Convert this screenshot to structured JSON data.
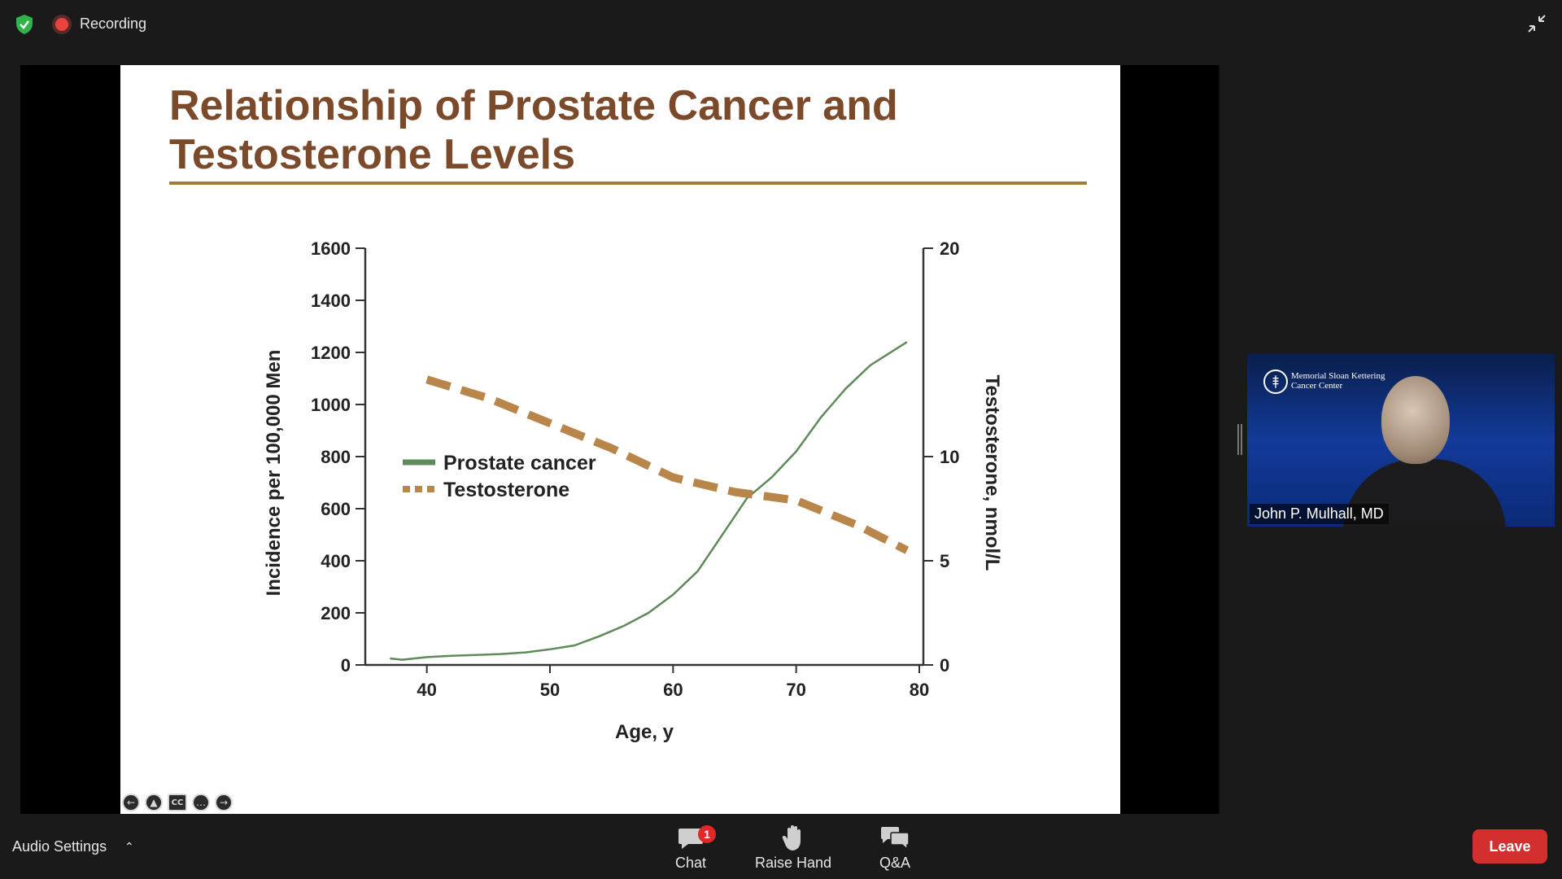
{
  "topbar": {
    "recording_label": "Recording"
  },
  "slide": {
    "title_line1": "Relationship of Prostate Cancer and",
    "title_line2": "Testosterone Levels"
  },
  "chart_data": {
    "type": "line",
    "title": "Relationship of Prostate Cancer and Testosterone Levels",
    "xlabel": "Age, y",
    "ylabel": "Incidence per 100,000 Men",
    "y2label": "Testosterone, nmol/L",
    "xlim": [
      35,
      80
    ],
    "ylim": [
      0,
      1600
    ],
    "y2lim": [
      0,
      20
    ],
    "x_ticks": [
      40,
      50,
      60,
      70,
      80
    ],
    "y_ticks": [
      0,
      200,
      400,
      600,
      800,
      1000,
      1200,
      1400,
      1600
    ],
    "y2_ticks": [
      0,
      5,
      10,
      20
    ],
    "legend_position": "center-left",
    "series": [
      {
        "name": "Prostate cancer",
        "axis": "left",
        "color": "#5f8a5a",
        "style": "solid",
        "x": [
          37,
          38,
          40,
          42,
          44,
          46,
          48,
          50,
          52,
          54,
          56,
          58,
          60,
          62,
          64,
          66,
          68,
          70,
          72,
          74,
          76,
          78,
          79
        ],
        "y": [
          25,
          20,
          30,
          35,
          38,
          42,
          48,
          60,
          75,
          110,
          150,
          200,
          270,
          360,
          500,
          640,
          720,
          820,
          950,
          1060,
          1150,
          1210,
          1240
        ]
      },
      {
        "name": "Testosterone",
        "axis": "right",
        "color": "#b8864a",
        "style": "dashed",
        "x": [
          40,
          45,
          50,
          55,
          60,
          65,
          70,
          75,
          79
        ],
        "y": [
          13.7,
          12.8,
          11.6,
          10.4,
          9.0,
          8.3,
          7.9,
          6.7,
          5.5
        ]
      }
    ]
  },
  "slide_controls": {
    "cc_label": "CC"
  },
  "video": {
    "participant_name": "John P. Mulhall, MD",
    "org_line1": "Memorial Sloan Kettering",
    "org_line2": "Cancer Center"
  },
  "bottombar": {
    "audio_settings": "Audio Settings",
    "chat_label": "Chat",
    "chat_badge": "1",
    "raise_hand_label": "Raise Hand",
    "qa_label": "Q&A",
    "leave_label": "Leave"
  },
  "colors": {
    "leave": "#d32f2f",
    "title": "#7a4a2a",
    "rule": "#a67a3a"
  }
}
